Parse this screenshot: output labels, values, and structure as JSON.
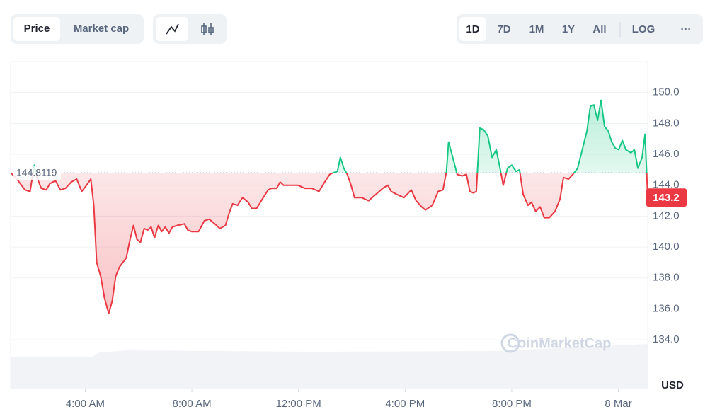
{
  "controls": {
    "metric_tabs": [
      "Price",
      "Market cap"
    ],
    "ranges": [
      "1D",
      "7D",
      "1M",
      "1Y",
      "All"
    ],
    "log": "LOG",
    "more": "···"
  },
  "watermark": "CoinMarketCap",
  "chart_data": {
    "type": "line",
    "y_unit": "USD",
    "reference": {
      "value": 144.8119,
      "label": "144.8119"
    },
    "price_label": "143.2",
    "up_color": "#16c784",
    "down_color": "#ea3943",
    "grid": true,
    "xlim": [
      1.2,
      25.1
    ],
    "ylim": [
      130.8,
      152
    ],
    "xticks": [
      {
        "value": 4,
        "label": "4:00 AM"
      },
      {
        "value": 8,
        "label": "8:00 AM"
      },
      {
        "value": 12,
        "label": "12:00 PM"
      },
      {
        "value": 16,
        "label": "4:00 PM"
      },
      {
        "value": 20,
        "label": "8:00 PM"
      },
      {
        "value": 24,
        "label": "8 Mar"
      }
    ],
    "yticks": [
      {
        "value": 134,
        "label": "134.0"
      },
      {
        "value": 136,
        "label": "136.0"
      },
      {
        "value": 138,
        "label": "138.0"
      },
      {
        "value": 140,
        "label": "140.0"
      },
      {
        "value": 142,
        "label": "142.0"
      },
      {
        "value": 144,
        "label": "144.0"
      },
      {
        "value": 146,
        "label": "146.0"
      },
      {
        "value": 148,
        "label": "148.0"
      },
      {
        "value": 150,
        "label": "150.0"
      }
    ],
    "x": [
      1.21,
      1.48,
      1.74,
      1.93,
      2.09,
      2.19,
      2.35,
      2.54,
      2.67,
      2.88,
      3.07,
      3.26,
      3.47,
      3.68,
      3.87,
      4.05,
      4.21,
      4.32,
      4.43,
      4.58,
      4.72,
      4.88,
      5.01,
      5.14,
      5.28,
      5.41,
      5.54,
      5.67,
      5.81,
      5.94,
      6.07,
      6.21,
      6.34,
      6.47,
      6.6,
      6.74,
      6.87,
      7.0,
      7.14,
      7.27,
      7.46,
      7.72,
      7.85,
      7.99,
      8.25,
      8.47,
      8.65,
      8.86,
      9.05,
      9.26,
      9.4,
      9.53,
      9.71,
      9.9,
      10.11,
      10.25,
      10.43,
      10.64,
      10.86,
      10.99,
      11.18,
      11.31,
      11.44,
      11.71,
      11.97,
      12.24,
      12.5,
      12.77,
      12.98,
      13.17,
      13.3,
      13.46,
      13.57,
      13.7,
      13.83,
      13.97,
      14.1,
      14.37,
      14.63,
      14.9,
      15.16,
      15.35,
      15.48,
      15.69,
      15.96,
      16.23,
      16.41,
      16.62,
      16.76,
      17.02,
      17.24,
      17.42,
      17.55,
      17.63,
      17.77,
      17.95,
      18.14,
      18.3,
      18.43,
      18.56,
      18.67,
      18.8,
      18.94,
      19.1,
      19.26,
      19.42,
      19.57,
      19.68,
      19.84,
      20.0,
      20.16,
      20.29,
      20.43,
      20.61,
      20.74,
      20.9,
      21.06,
      21.22,
      21.41,
      21.62,
      21.81,
      21.94,
      22.13,
      22.29,
      22.47,
      22.66,
      22.82,
      22.95,
      23.08,
      23.22,
      23.35,
      23.48,
      23.62,
      23.75,
      23.88,
      24.01,
      24.15,
      24.28,
      24.47,
      24.6,
      24.73,
      24.89,
      25.0,
      25.1
    ],
    "series": [
      {
        "name": "Price",
        "values": [
          144.8,
          144.3,
          143.7,
          143.6,
          145.3,
          144.5,
          143.8,
          143.7,
          144.1,
          144.3,
          143.7,
          143.8,
          144.2,
          144.4,
          143.6,
          144.0,
          144.4,
          142.7,
          139.0,
          138.1,
          136.7,
          135.7,
          136.5,
          138.1,
          138.7,
          139.0,
          139.3,
          140.4,
          141.4,
          140.5,
          140.3,
          141.2,
          141.1,
          141.3,
          140.6,
          141.4,
          141.0,
          141.3,
          140.9,
          141.3,
          141.4,
          141.5,
          141.1,
          141.0,
          141.0,
          141.7,
          141.8,
          141.5,
          141.2,
          141.4,
          142.2,
          142.8,
          142.7,
          143.2,
          142.9,
          142.5,
          142.5,
          143.1,
          143.7,
          143.8,
          143.8,
          144.2,
          144.0,
          144.0,
          144.0,
          143.8,
          143.8,
          143.6,
          144.2,
          144.7,
          144.8,
          144.9,
          145.8,
          145.1,
          144.7,
          144.0,
          143.2,
          143.2,
          143.0,
          143.4,
          143.8,
          144.0,
          143.6,
          143.4,
          143.2,
          143.7,
          143.0,
          142.6,
          142.4,
          142.7,
          143.6,
          143.7,
          144.9,
          146.8,
          145.9,
          144.7,
          144.6,
          144.7,
          143.6,
          143.5,
          143.6,
          147.7,
          147.6,
          147.2,
          145.8,
          146.3,
          145.0,
          144.0,
          145.1,
          145.3,
          144.9,
          145.0,
          143.4,
          142.7,
          142.9,
          142.3,
          142.6,
          141.9,
          141.9,
          142.3,
          143.1,
          144.5,
          144.4,
          144.7,
          145.1,
          146.4,
          147.5,
          149.1,
          149.2,
          148.2,
          149.5,
          147.8,
          147.5,
          146.8,
          146.4,
          146.3,
          146.9,
          146.3,
          146.1,
          146.3,
          145.1,
          145.8,
          147.3,
          143.2
        ]
      }
    ]
  }
}
